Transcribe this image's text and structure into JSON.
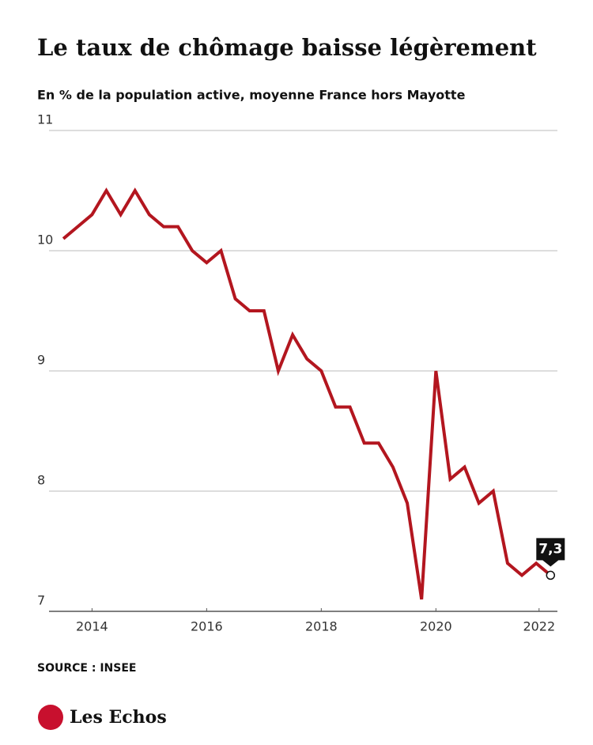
{
  "chart_data": {
    "type": "line",
    "title": "Le taux de chômage baisse légèrement",
    "subtitle": "En % de la population active, moyenne France hors Mayotte",
    "source": "SOURCE : INSEE",
    "brand": "Les Echos",
    "x": [
      2014,
      2014.25,
      2014.5,
      2014.75,
      2015,
      2015.25,
      2015.5,
      2015.75,
      2016,
      2016.25,
      2016.5,
      2016.75,
      2017,
      2017.25,
      2017.5,
      2017.75,
      2018,
      2018.25,
      2018.5,
      2018.75,
      2019,
      2019.25,
      2019.5,
      2019.75,
      2020,
      2020.25,
      2020.5,
      2020.75,
      2021,
      2021.25,
      2021.5,
      2021.75,
      2022,
      2022.25,
      2022.5
    ],
    "series": [
      {
        "name": "Taux de chômage",
        "color": "#b3161f",
        "values": [
          10.1,
          10.2,
          10.3,
          10.5,
          10.3,
          10.5,
          10.3,
          10.2,
          10.2,
          10.0,
          9.9,
          10.0,
          9.6,
          9.5,
          9.5,
          9.0,
          9.3,
          9.1,
          9.0,
          8.7,
          8.7,
          8.4,
          8.4,
          8.2,
          7.9,
          7.1,
          9.0,
          8.1,
          8.2,
          7.9,
          8.0,
          7.4,
          7.3,
          7.4,
          7.3
        ],
        "value_labels": [
          null,
          null,
          null,
          null,
          null,
          null,
          null,
          null,
          null,
          null,
          null,
          null,
          null,
          null,
          null,
          null,
          null,
          null,
          null,
          null,
          null,
          null,
          null,
          null,
          null,
          null,
          null,
          null,
          null,
          null,
          null,
          null,
          null,
          null,
          "7,3"
        ]
      }
    ],
    "xlim": [
      2013.75,
      2022.62
    ],
    "xticks": [
      {
        "value": 2014.5,
        "label": "2014"
      },
      {
        "value": 2016.5,
        "label": "2016"
      },
      {
        "value": 2018.5,
        "label": "2018"
      },
      {
        "value": 2020.5,
        "label": "2020"
      },
      {
        "value": 2022.3,
        "label": "2022"
      }
    ],
    "ylim": [
      7,
      11
    ],
    "yticks": [
      7,
      8,
      9,
      10,
      11
    ],
    "grid": true
  }
}
